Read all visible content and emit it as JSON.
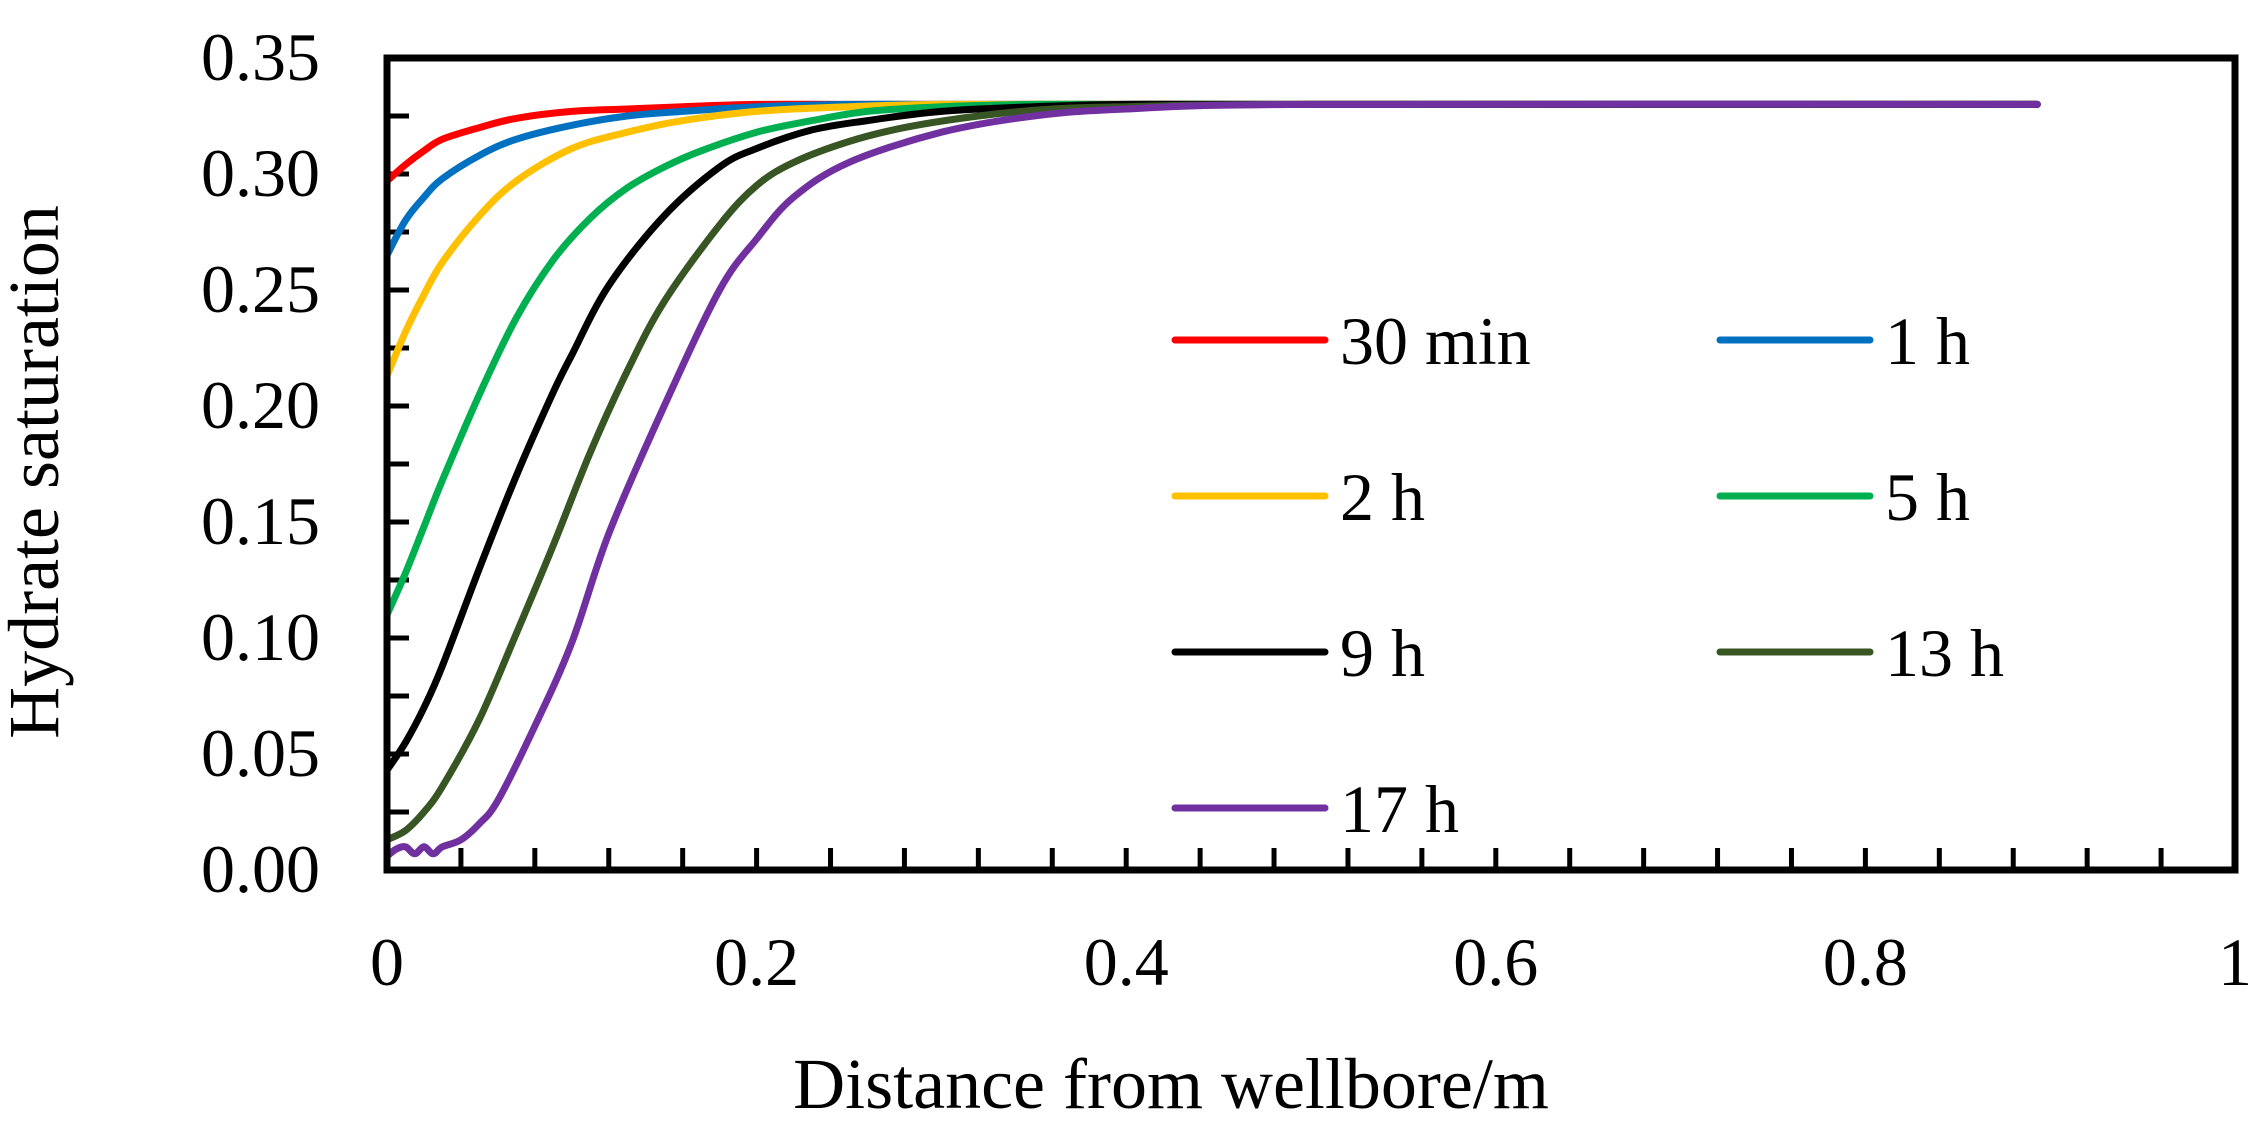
{
  "chart_data": {
    "type": "line",
    "title": "",
    "xlabel": "Distance from wellbore/m",
    "ylabel": "Hydrate saturation",
    "xlim": [
      0,
      1
    ],
    "ylim": [
      0,
      0.35
    ],
    "x_ticks": [
      "0",
      "0.2",
      "0.4",
      "0.6",
      "0.8",
      "1"
    ],
    "x_tick_values": [
      0,
      0.2,
      0.4,
      0.6,
      0.8,
      1
    ],
    "y_ticks": [
      "0.00",
      "0.05",
      "0.10",
      "0.15",
      "0.20",
      "0.25",
      "0.30",
      "0.35"
    ],
    "y_tick_values": [
      0,
      0.05,
      0.1,
      0.15,
      0.2,
      0.25,
      0.3,
      0.35
    ],
    "grid": false,
    "legend_position": "center-right",
    "series": [
      {
        "name": "30 min",
        "color": "#ff0000",
        "x": [
          0.0,
          0.01,
          0.02,
          0.03,
          0.05,
          0.07,
          0.1,
          0.13,
          0.16,
          0.2,
          0.25,
          0.3,
          0.4,
          0.5,
          0.893
        ],
        "y": [
          0.297,
          0.304,
          0.31,
          0.315,
          0.32,
          0.324,
          0.327,
          0.328,
          0.329,
          0.33,
          0.33,
          0.33,
          0.33,
          0.33,
          0.33
        ]
      },
      {
        "name": "1 h",
        "color": "#0070c0",
        "x": [
          0.0,
          0.01,
          0.02,
          0.03,
          0.05,
          0.07,
          0.1,
          0.13,
          0.16,
          0.2,
          0.25,
          0.3,
          0.4,
          0.5,
          0.893
        ],
        "y": [
          0.265,
          0.28,
          0.29,
          0.298,
          0.308,
          0.315,
          0.321,
          0.325,
          0.327,
          0.329,
          0.33,
          0.33,
          0.33,
          0.33,
          0.33
        ]
      },
      {
        "name": "2 h",
        "color": "#ffc000",
        "x": [
          0.0,
          0.01,
          0.02,
          0.03,
          0.05,
          0.07,
          0.1,
          0.13,
          0.16,
          0.2,
          0.25,
          0.3,
          0.4,
          0.5,
          0.893
        ],
        "y": [
          0.213,
          0.232,
          0.248,
          0.262,
          0.282,
          0.297,
          0.311,
          0.318,
          0.323,
          0.327,
          0.329,
          0.33,
          0.33,
          0.33,
          0.33
        ]
      },
      {
        "name": "5 h",
        "color": "#00b050",
        "x": [
          0.0,
          0.01,
          0.02,
          0.03,
          0.05,
          0.07,
          0.09,
          0.11,
          0.13,
          0.15,
          0.17,
          0.2,
          0.23,
          0.26,
          0.3,
          0.35,
          0.4,
          0.5,
          0.893
        ],
        "y": [
          0.11,
          0.128,
          0.148,
          0.168,
          0.205,
          0.238,
          0.263,
          0.281,
          0.294,
          0.303,
          0.31,
          0.318,
          0.323,
          0.327,
          0.329,
          0.33,
          0.33,
          0.33,
          0.33
        ]
      },
      {
        "name": "9 h",
        "color": "#000000",
        "x": [
          0.0,
          0.01,
          0.02,
          0.03,
          0.05,
          0.07,
          0.09,
          0.1,
          0.12,
          0.15,
          0.18,
          0.2,
          0.23,
          0.26,
          0.3,
          0.35,
          0.4,
          0.5,
          0.893
        ],
        "y": [
          0.043,
          0.055,
          0.07,
          0.088,
          0.13,
          0.17,
          0.206,
          0.222,
          0.252,
          0.282,
          0.303,
          0.311,
          0.319,
          0.323,
          0.327,
          0.329,
          0.33,
          0.33,
          0.33
        ]
      },
      {
        "name": "13 h",
        "color": "#375623",
        "x": [
          0.0,
          0.01,
          0.02,
          0.03,
          0.05,
          0.07,
          0.09,
          0.11,
          0.13,
          0.15,
          0.18,
          0.2,
          0.22,
          0.25,
          0.28,
          0.32,
          0.36,
          0.4,
          0.5,
          0.893
        ],
        "y": [
          0.013,
          0.017,
          0.025,
          0.036,
          0.065,
          0.102,
          0.14,
          0.18,
          0.215,
          0.245,
          0.278,
          0.295,
          0.305,
          0.314,
          0.32,
          0.325,
          0.328,
          0.329,
          0.33,
          0.33
        ]
      },
      {
        "name": "17 h",
        "color": "#7030a0",
        "x": [
          0.0,
          0.005,
          0.01,
          0.015,
          0.02,
          0.025,
          0.03,
          0.04,
          0.05,
          0.06,
          0.08,
          0.1,
          0.12,
          0.15,
          0.18,
          0.2,
          0.22,
          0.25,
          0.3,
          0.35,
          0.4,
          0.5,
          0.893
        ],
        "y": [
          0.006,
          0.009,
          0.01,
          0.007,
          0.01,
          0.007,
          0.01,
          0.013,
          0.02,
          0.03,
          0.062,
          0.098,
          0.145,
          0.2,
          0.25,
          0.272,
          0.29,
          0.305,
          0.318,
          0.325,
          0.328,
          0.33,
          0.33
        ]
      }
    ]
  }
}
